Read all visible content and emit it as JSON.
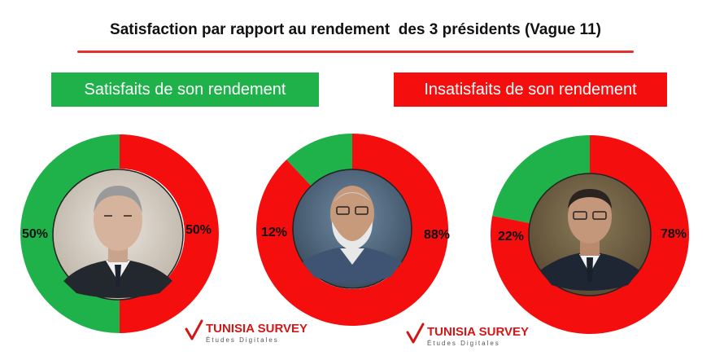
{
  "title": "Satisfaction par rapport au rendement  des 3 présidents (Vague 11)",
  "legend": {
    "satisfied": "Satisfaits de son rendement",
    "unsatisfied": "Insatisfaits de son rendement"
  },
  "colors": {
    "satisfied": "#1fb24a",
    "unsatisfied": "#f40e0e",
    "title_rule": "#e03030"
  },
  "chart_data": {
    "type": "pie",
    "categories": [
      "Satisfaits de son rendement",
      "Insatisfaits de son rendement"
    ],
    "charts": [
      {
        "values": [
          50,
          50
        ],
        "labels": [
          "50%",
          "50%"
        ]
      },
      {
        "values": [
          12,
          88
        ],
        "labels": [
          "12%",
          "88%"
        ]
      },
      {
        "values": [
          22,
          78
        ],
        "labels": [
          "22%",
          "78%"
        ]
      }
    ]
  },
  "watermarks": [
    {
      "name": "TUNISIA SURVEY",
      "tagline": "Études Digitales"
    },
    {
      "name": "TUNISIA SURVEY",
      "tagline": "Études Digitales"
    }
  ]
}
